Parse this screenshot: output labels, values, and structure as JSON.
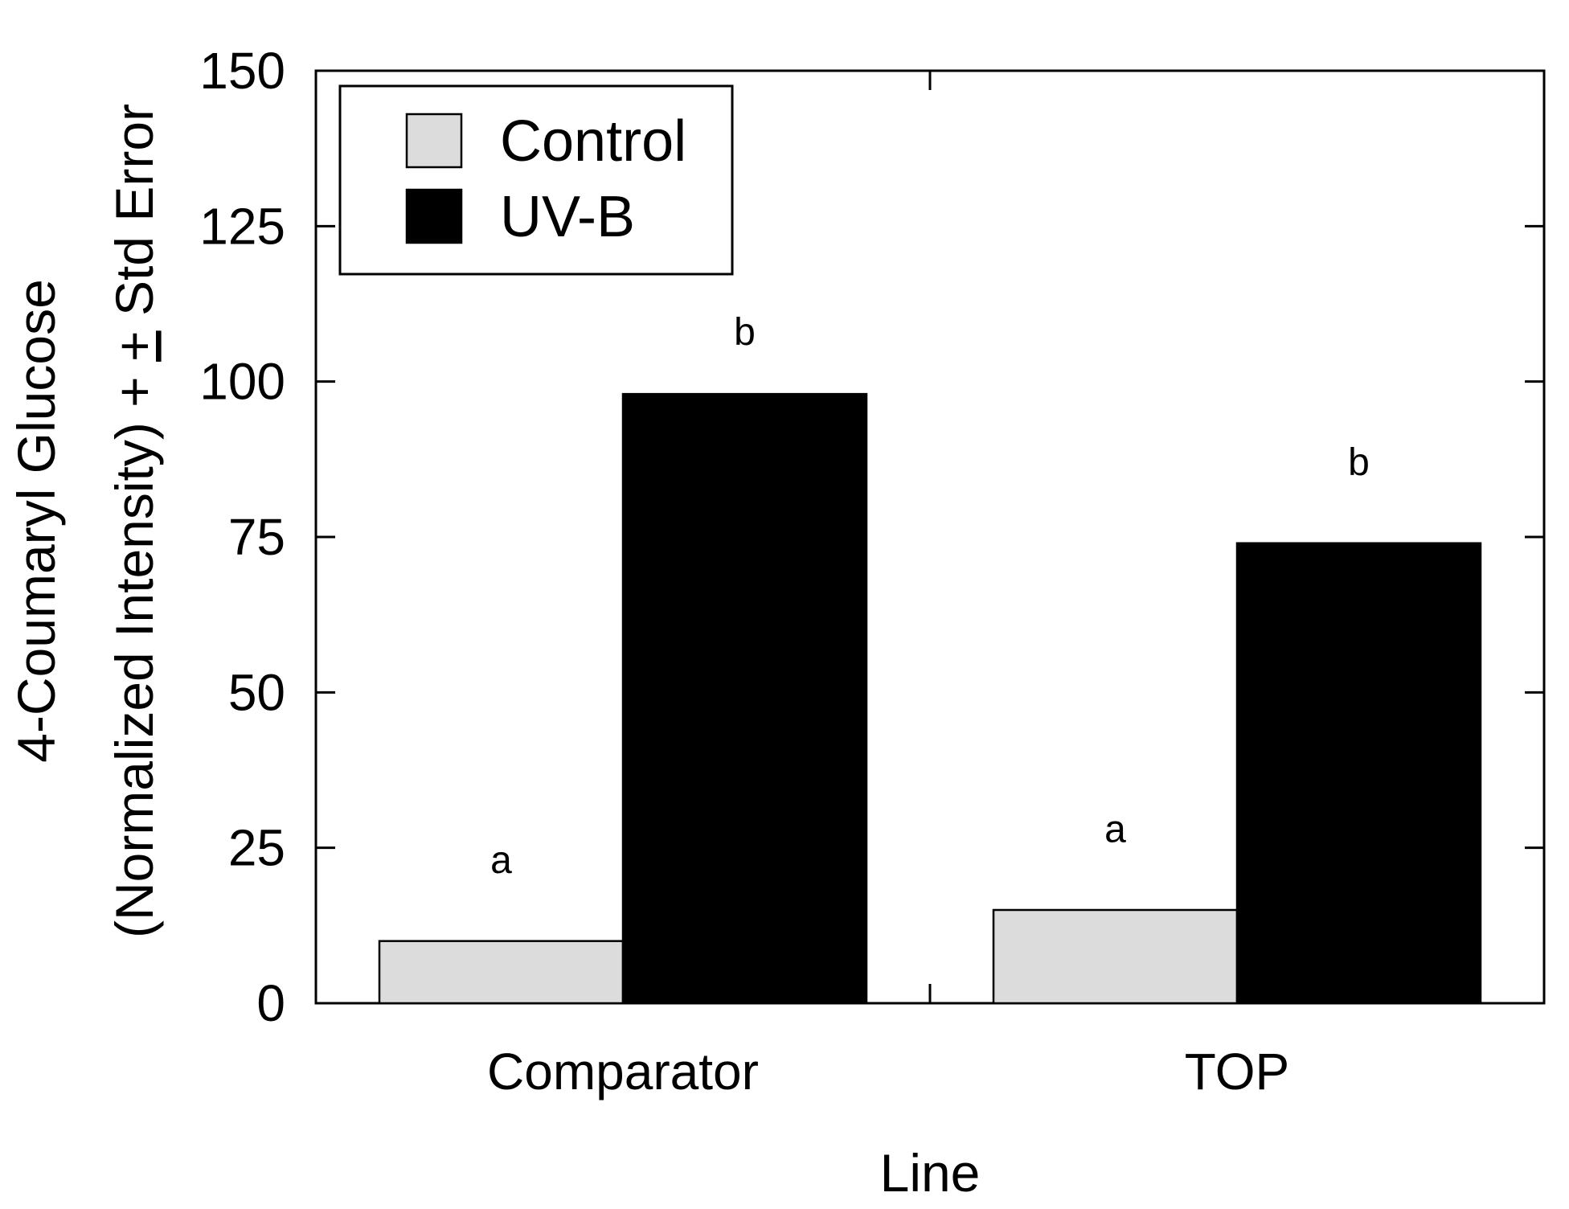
{
  "chart_data": {
    "type": "bar",
    "title": "",
    "xlabel": "Line",
    "ylabel_line1": "4-Coumaryl Glucose",
    "ylabel_line2_prefix": "(Normalized Intensity) + ",
    "ylabel_line2_pm": "+",
    "ylabel_line2_suffix": " Std Error",
    "categories": [
      "Comparator",
      "TOP"
    ],
    "series": [
      {
        "name": "Control",
        "color": "#dcdcdc",
        "values": [
          10,
          15
        ]
      },
      {
        "name": "UV-B",
        "color": "#000000",
        "values": [
          98,
          74
        ]
      }
    ],
    "significance_letters": [
      {
        "category": "Comparator",
        "series": "Control",
        "letter": "a",
        "y": 23
      },
      {
        "category": "Comparator",
        "series": "UV-B",
        "letter": "b",
        "y": 108
      },
      {
        "category": "TOP",
        "series": "Control",
        "letter": "a",
        "y": 28
      },
      {
        "category": "TOP",
        "series": "UV-B",
        "letter": "b",
        "y": 87
      }
    ],
    "ylim": [
      0,
      150
    ],
    "yticks": [
      0,
      25,
      50,
      75,
      100,
      125,
      150
    ],
    "legend_position": "top-left",
    "grid": false
  }
}
